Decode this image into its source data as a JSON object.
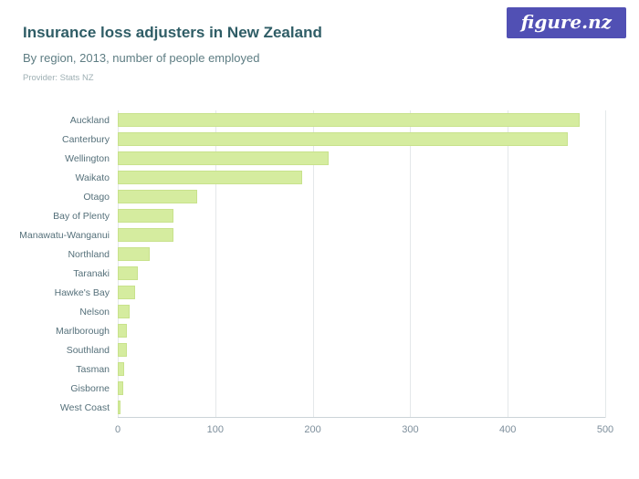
{
  "page": {
    "title": "Insurance loss adjusters in New Zealand",
    "subtitle": "By region, 2013, number of people employed",
    "provider": "Provider: Stats NZ",
    "logo_text": "figure.nz"
  },
  "colors": {
    "bar_fill": "#d5ec9f",
    "bar_border": "#c8e28c",
    "title_text": "#2f5d66",
    "subtitle_text": "#5e7d83",
    "provider_text": "#9fb0b4",
    "axis_text": "#7d8e9b",
    "gridline": "#e4e8ea",
    "logo_background": "#5150b4"
  },
  "chart_data": {
    "type": "bar",
    "orientation": "horizontal",
    "title": "Insurance loss adjusters in New Zealand",
    "subtitle": "By region, 2013, number of people employed",
    "xlabel": "",
    "ylabel": "",
    "xlim": [
      0,
      500
    ],
    "xticks": [
      0,
      100,
      200,
      300,
      400,
      500
    ],
    "grid": true,
    "categories": [
      "Auckland",
      "Canterbury",
      "Wellington",
      "Waikato",
      "Otago",
      "Bay of Plenty",
      "Manawatu-Wanganui",
      "Northland",
      "Taranaki",
      "Hawke's Bay",
      "Nelson",
      "Marlborough",
      "Southland",
      "Tasman",
      "Gisborne",
      "West Coast"
    ],
    "values": [
      474,
      462,
      216,
      189,
      81,
      57,
      57,
      33,
      21,
      18,
      12,
      9,
      9,
      7,
      6,
      3
    ]
  }
}
